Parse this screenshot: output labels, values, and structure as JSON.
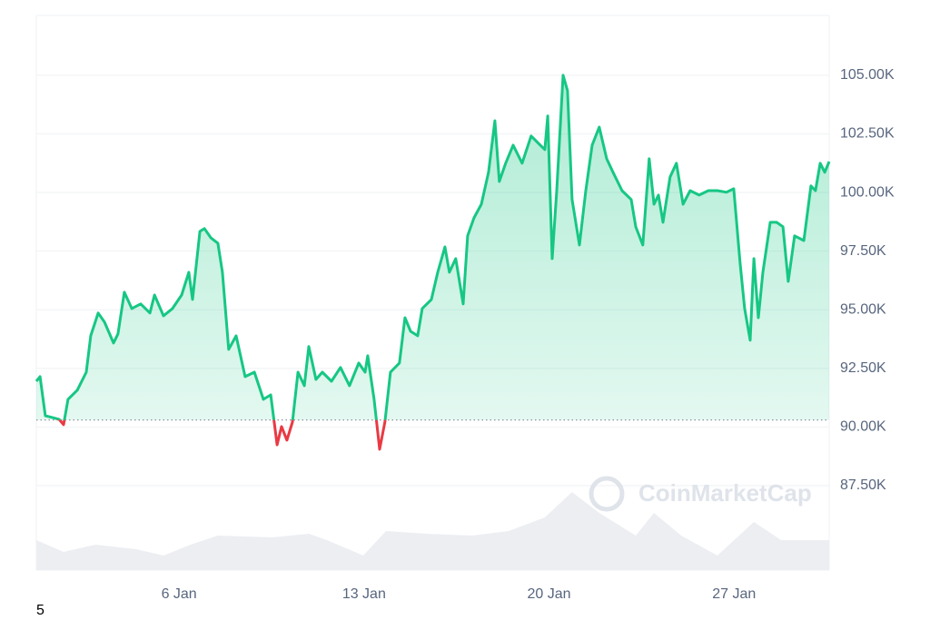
{
  "chart_data": {
    "type": "line",
    "watermark": "CoinMarketCap",
    "corner_text": "5",
    "series": [
      {
        "color": "#16c784",
        "below_color": "#ea3943",
        "x": [
          0.6,
          0.74,
          0.94,
          1.22,
          1.46,
          1.63,
          1.8,
          2.15,
          2.49,
          2.66,
          2.94,
          3.18,
          3.52,
          3.69,
          3.93,
          4.21,
          4.55,
          4.9,
          5.07,
          5.41,
          5.75,
          6.1,
          6.37,
          6.51,
          6.79,
          6.96,
          7.2,
          7.47,
          7.64,
          7.88,
          8.16,
          8.5,
          8.85,
          9.19,
          9.47,
          9.71,
          9.88,
          10.08,
          10.29,
          10.5,
          10.74,
          10.91,
          11.18,
          11.42,
          11.77,
          12.11,
          12.45,
          12.8,
          13.04,
          13.14,
          13.38,
          13.59,
          13.79,
          14.0,
          14.34,
          14.55,
          14.76,
          15.03,
          15.2,
          15.55,
          15.79,
          16.06,
          16.23,
          16.47,
          16.75,
          16.92,
          17.16,
          17.44,
          17.71,
          17.95,
          18.12,
          18.36,
          18.64,
          18.98,
          19.32,
          19.67,
          19.84,
          19.95,
          20.12,
          20.29,
          20.53,
          20.7,
          20.87,
          21.15,
          21.39,
          21.63,
          21.9,
          22.18,
          22.42,
          22.76,
          23.11,
          23.28,
          23.55,
          23.79,
          23.97,
          24.14,
          24.31,
          24.58,
          24.82,
          25.07,
          25.34,
          25.68,
          26.03,
          26.37,
          26.71,
          26.99,
          27.23,
          27.4,
          27.61,
          27.75,
          27.92,
          28.09,
          28.37,
          28.61,
          28.85,
          29.05,
          29.29,
          29.64,
          29.91,
          30.08,
          30.26,
          30.43,
          30.6
        ],
        "values": [
          91.95,
          92.15,
          90.48,
          90.4,
          90.33,
          90.1,
          91.18,
          91.57,
          92.34,
          93.89,
          94.86,
          94.47,
          93.58,
          93.97,
          95.75,
          95.05,
          95.25,
          94.86,
          95.63,
          94.74,
          95.05,
          95.63,
          96.6,
          95.44,
          98.34,
          98.46,
          98.07,
          97.84,
          96.6,
          93.31,
          93.89,
          92.15,
          92.34,
          91.18,
          91.37,
          89.24,
          90.02,
          89.44,
          90.21,
          92.34,
          91.76,
          93.43,
          92.03,
          92.34,
          91.95,
          92.54,
          91.76,
          92.73,
          92.34,
          93.04,
          91.18,
          89.05,
          90.21,
          92.34,
          92.73,
          94.66,
          94.08,
          93.89,
          95.05,
          95.44,
          96.6,
          97.68,
          96.6,
          97.18,
          95.25,
          98.15,
          98.92,
          99.5,
          100.86,
          103.06,
          100.47,
          101.25,
          102.02,
          101.25,
          102.41,
          102.02,
          101.83,
          103.26,
          97.18,
          100.08,
          105.0,
          104.34,
          99.7,
          97.76,
          100.08,
          102.02,
          102.79,
          101.44,
          100.86,
          100.08,
          99.7,
          98.54,
          97.76,
          101.44,
          99.5,
          99.89,
          98.73,
          100.66,
          101.25,
          99.5,
          100.08,
          99.89,
          100.08,
          100.08,
          100.01,
          100.16,
          96.99,
          95.05,
          93.7,
          97.18,
          94.66,
          96.6,
          98.73,
          98.73,
          98.54,
          96.21,
          98.15,
          97.95,
          100.28,
          100.08,
          101.25,
          100.86,
          101.32
        ]
      }
    ],
    "baseline": 90.3,
    "volume": {
      "color": "#eceef2",
      "x": [
        0.6,
        1.63,
        2.83,
        4.38,
        5.41,
        6.44,
        7.47,
        9.53,
        10.91,
        11.6,
        12.97,
        13.83,
        15.38,
        17.09,
        18.47,
        19.84,
        20.87,
        21.9,
        23.28,
        23.97,
        25.0,
        26.37,
        27.75,
        28.78,
        30.6
      ],
      "values": [
        33,
        20,
        28,
        23,
        16,
        28,
        38,
        36,
        40,
        33,
        16,
        43,
        40,
        38,
        43,
        58,
        86,
        63,
        38,
        63,
        38,
        16,
        53,
        33,
        33
      ]
    },
    "y2lim": [
      0,
      100
    ],
    "xlim": [
      0.6,
      30.6
    ],
    "xticks": [
      {
        "value": 6,
        "label": "6 Jan"
      },
      {
        "value": 13,
        "label": "13 Jan"
      },
      {
        "value": 20,
        "label": "20 Jan"
      },
      {
        "value": 27,
        "label": "27 Jan"
      }
    ],
    "ylim": [
      83.9,
      107.55
    ],
    "yticks": [
      {
        "value": 87.5,
        "label": "87.50K"
      },
      {
        "value": 90,
        "label": "90.00K"
      },
      {
        "value": 92.5,
        "label": "92.50K"
      },
      {
        "value": 95,
        "label": "95.00K"
      },
      {
        "value": 97.5,
        "label": "97.50K"
      },
      {
        "value": 100,
        "label": "100.00K"
      },
      {
        "value": 102.5,
        "label": "102.50K"
      },
      {
        "value": 105,
        "label": "105.00K"
      }
    ],
    "grid": true
  }
}
